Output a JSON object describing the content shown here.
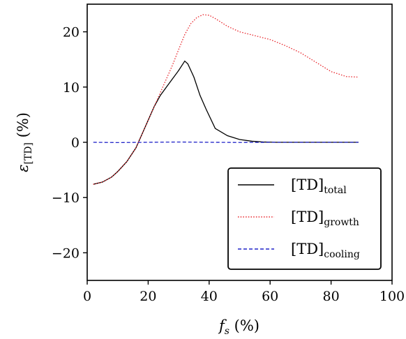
{
  "chart_data": {
    "type": "line",
    "title": "",
    "xlabel": {
      "main": "f",
      "sub": "s",
      "unit": " (%)"
    },
    "ylabel": {
      "main": "ε",
      "sub": "[TD]",
      "unit": " (%)"
    },
    "xlim": [
      0,
      100
    ],
    "ylim": [
      -25,
      25
    ],
    "xticks": [
      0,
      20,
      40,
      60,
      80,
      100
    ],
    "yticks": [
      -20,
      -10,
      0,
      10,
      20
    ],
    "xtick_labels": [
      "0",
      "20",
      "40",
      "60",
      "80",
      "100"
    ],
    "ytick_labels": [
      "−20",
      "−10",
      "0",
      "10",
      "20"
    ],
    "grid": false,
    "legend_position": "lower-right",
    "series": [
      {
        "name": {
          "main": "[TD]",
          "sub": "total"
        },
        "color": "#000000",
        "style": "solid",
        "x": [
          2,
          5,
          8,
          10,
          13,
          16,
          18,
          20,
          22,
          24,
          26,
          28,
          30,
          32,
          33,
          35,
          37,
          39,
          42,
          46,
          50,
          54,
          58,
          62,
          70,
          80,
          89
        ],
        "y": [
          -7.6,
          -7.2,
          -6.3,
          -5.3,
          -3.5,
          -1.0,
          1.5,
          4.0,
          6.5,
          8.5,
          10.0,
          11.5,
          13.0,
          14.7,
          14.2,
          11.8,
          8.5,
          6.0,
          2.5,
          1.2,
          0.5,
          0.2,
          0.05,
          0,
          0,
          0,
          0
        ]
      },
      {
        "name": {
          "main": "[TD]",
          "sub": "growth"
        },
        "color": "#e8242a",
        "style": "dotted",
        "x": [
          2,
          5,
          8,
          10,
          13,
          16,
          18,
          20,
          22,
          24,
          26,
          28,
          30,
          32,
          34,
          36,
          38,
          40,
          42,
          46,
          50,
          55,
          60,
          65,
          70,
          75,
          80,
          85,
          89
        ],
        "y": [
          -7.6,
          -7.2,
          -6.3,
          -5.3,
          -3.5,
          -1.0,
          1.5,
          4.0,
          6.5,
          9.0,
          11.5,
          14.0,
          16.8,
          19.5,
          21.5,
          22.6,
          23.1,
          23.0,
          22.4,
          21.0,
          20.0,
          19.3,
          18.6,
          17.5,
          16.2,
          14.5,
          12.8,
          11.9,
          11.8
        ]
      },
      {
        "name": {
          "main": "[TD]",
          "sub": "cooling"
        },
        "color": "#1f22c8",
        "style": "dashed",
        "x": [
          2,
          10,
          20,
          30,
          40,
          50,
          60,
          70,
          80,
          89
        ],
        "y": [
          0,
          -0.05,
          0,
          0.05,
          0,
          -0.03,
          0,
          0,
          0,
          0
        ]
      }
    ]
  }
}
